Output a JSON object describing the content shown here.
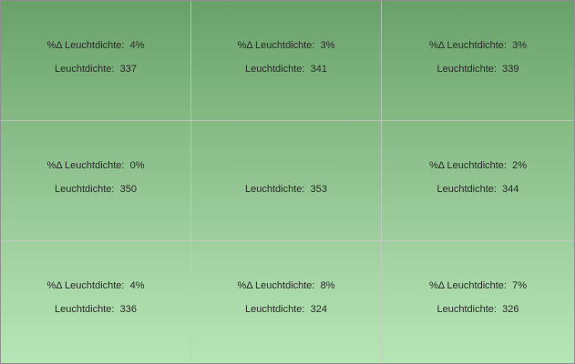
{
  "cells": [
    {
      "delta_label": "%Δ Leuchtdichte:",
      "delta_value": "4%",
      "lum_label": "Leuchtdichte:",
      "lum_value": "337"
    },
    {
      "delta_label": "%Δ Leuchtdichte:",
      "delta_value": "3%",
      "lum_label": "Leuchtdichte:",
      "lum_value": "341"
    },
    {
      "delta_label": "%Δ Leuchtdichte:",
      "delta_value": "3%",
      "lum_label": "Leuchtdichte:",
      "lum_value": "339"
    },
    {
      "delta_label": "%Δ Leuchtdichte:",
      "delta_value": "0%",
      "lum_label": "Leuchtdichte:",
      "lum_value": "350"
    },
    {
      "delta_label": "",
      "delta_value": "",
      "lum_label": "Leuchtdichte:",
      "lum_value": "353"
    },
    {
      "delta_label": "%Δ Leuchtdichte:",
      "delta_value": "2%",
      "lum_label": "Leuchtdichte:",
      "lum_value": "344"
    },
    {
      "delta_label": "%Δ Leuchtdichte:",
      "delta_value": "4%",
      "lum_label": "Leuchtdichte:",
      "lum_value": "336"
    },
    {
      "delta_label": "%Δ Leuchtdichte:",
      "delta_value": "8%",
      "lum_label": "Leuchtdichte:",
      "lum_value": "324"
    },
    {
      "delta_label": "%Δ Leuchtdichte:",
      "delta_value": "7%",
      "lum_label": "Leuchtdichte:",
      "lum_value": "326"
    }
  ],
  "colors": {
    "gradient_top": "#6aa16a",
    "gradient_bottom": "#b6e6b6",
    "text": "#2a2a2a"
  }
}
